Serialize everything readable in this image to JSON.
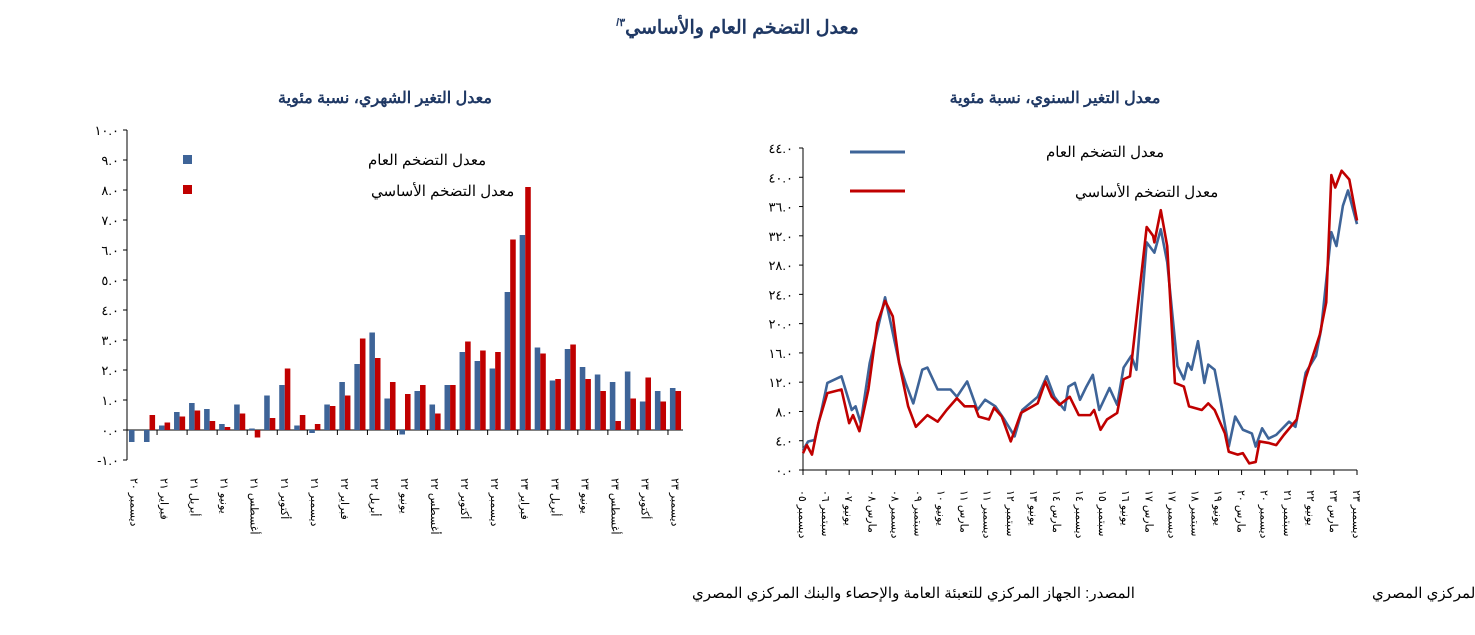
{
  "title": "معدل التضخم العام والأساسي",
  "title_note": "٣/",
  "colors": {
    "headline": "#3e6498",
    "core": "#c00000",
    "title": "#1f3864"
  },
  "chart_data": [
    {
      "type": "bar",
      "title": "معدل التغير الشهري، نسبة مئوية",
      "ylim": [
        -1,
        10
      ],
      "yticks": [
        "-١.٠",
        "٠.٠",
        "١.٠",
        "٢.٠",
        "٣.٠",
        "٤.٠",
        "٥.٠",
        "٦.٠",
        "٧.٠",
        "٨.٠",
        "٩.٠",
        "١٠.٠"
      ],
      "xtick_labels": [
        "ديسمبر ٢٠",
        "فبراير ٢١",
        "أبريل ٢١",
        "يونيو ٢١",
        "أغسطس ٢١",
        "أكتوبر ٢١",
        "ديسمبر ٢١",
        "فبراير ٢٢",
        "أبريل ٢٢",
        "يونيو ٢٢",
        "أغسطس ٢٢",
        "أكتوبر ٢٢",
        "ديسمبر ٢٢",
        "فبراير ٢٣",
        "أبريل ٢٣",
        "يونيو ٢٣",
        "أغسطس ٢٣",
        "أكتوبر ٢٣",
        "ديسمبر ٢٣"
      ],
      "categories_note": "monthly, Dec 2020 - Dec 2023",
      "series": [
        {
          "name": "معدل التضخم العام",
          "values": [
            -0.4,
            -0.4,
            0.15,
            0.6,
            0.9,
            0.7,
            0.2,
            0.85,
            0.05,
            1.15,
            1.5,
            0.15,
            -0.1,
            0.85,
            1.6,
            2.2,
            3.25,
            1.05,
            -0.15,
            1.3,
            0.85,
            1.5,
            2.6,
            2.3,
            2.05,
            4.6,
            6.5,
            2.75,
            1.65,
            2.7,
            2.1,
            1.85,
            1.6,
            1.95,
            0.95,
            1.3,
            1.4
          ]
        },
        {
          "name": "معدل التضخم الأساسي",
          "values": [
            0,
            0.5,
            0.25,
            0.45,
            0.65,
            0.3,
            0.1,
            0.55,
            -0.25,
            0.4,
            2.05,
            0.5,
            0.2,
            0.8,
            1.15,
            3.05,
            2.4,
            1.6,
            1.2,
            1.5,
            0.55,
            1.5,
            2.95,
            2.65,
            2.6,
            6.35,
            8.1,
            2.55,
            1.7,
            2.85,
            1.7,
            1.3,
            0.3,
            1.05,
            1.75,
            0.95,
            1.3
          ]
        }
      ],
      "legend": "top-left",
      "source": "المصدر: الجهاز المركزي للتعبئة العامة والإحصاء والبنك المركزي المصري"
    },
    {
      "type": "line",
      "title": "معدل التغير السنوي، نسبة مئوية",
      "ylim": [
        0,
        44
      ],
      "xlim_months": [
        0,
        216
      ],
      "yticks": [
        "٠.٠",
        "٤.٠",
        "٨.٠",
        "١٢.٠",
        "١٦.٠",
        "٢٠.٠",
        "٢٤.٠",
        "٢٨.٠",
        "٣٢.٠",
        "٣٦.٠",
        "٤٠.٠",
        "٤٤.٠"
      ],
      "xtick_labels": [
        "ديسمبر ٠٥",
        "سبتمبر ٠٦",
        "يونيو ٠٧",
        "مارس ٠٨",
        "ديسمبر ٠٨",
        "سبتمبر ٠٩",
        "يونيو ١٠",
        "مارس ١١",
        "ديسمبر ١١",
        "سبتمبر ١٢",
        "يونيو ١٣",
        "مارس ١٤",
        "ديسمبر ١٤",
        "سبتمبر ١٥",
        "يونيو ١٦",
        "مارس ١٧",
        "ديسمبر ١٧",
        "سبتمبر ١٨",
        "يونيو ١٩",
        "مارس ٢٠",
        "ديسمبر ٢٠",
        "سبتمبر ٢١",
        "يونيو ٢٢",
        "مارس ٢٣",
        "ديسمبر ٢٣"
      ],
      "x_unit": "months since Dec 2005",
      "series": [
        {
          "name": "معدل التضخم العام",
          "points": [
            [
              0,
              2.7
            ],
            [
              2,
              3.9
            ],
            [
              4.5,
              4.1
            ],
            [
              7,
              7.8
            ],
            [
              9.5,
              11.9
            ],
            [
              15,
              12.8
            ],
            [
              19,
              8.2
            ],
            [
              20.5,
              8.7
            ],
            [
              22.5,
              6.4
            ],
            [
              26,
              14.6
            ],
            [
              32,
              23.6
            ],
            [
              34,
              20.4
            ],
            [
              37.5,
              14.6
            ],
            [
              40,
              11.9
            ],
            [
              43,
              9.1
            ],
            [
              46.5,
              13.7
            ],
            [
              48.5,
              14
            ],
            [
              52.5,
              11
            ],
            [
              57.5,
              11
            ],
            [
              60,
              10
            ],
            [
              64,
              12.1
            ],
            [
              68,
              8.2
            ],
            [
              71,
              9.6
            ],
            [
              75,
              8.7
            ],
            [
              78.5,
              6.9
            ],
            [
              82.5,
              4.6
            ],
            [
              85.5,
              8.2
            ],
            [
              91.5,
              10
            ],
            [
              95,
              12.8
            ],
            [
              98,
              10
            ],
            [
              102,
              8.2
            ],
            [
              103.5,
              11.4
            ],
            [
              106,
              11.9
            ],
            [
              108,
              9.6
            ],
            [
              110.5,
              11.4
            ],
            [
              113,
              13
            ],
            [
              115.5,
              8.2
            ],
            [
              119.5,
              11.2
            ],
            [
              122.5,
              8.9
            ],
            [
              125,
              14
            ],
            [
              128,
              15.6
            ],
            [
              130,
              13.7
            ],
            [
              134,
              31.1
            ],
            [
              137,
              29.7
            ],
            [
              139.5,
              32.9
            ],
            [
              142,
              28.4
            ],
            [
              146,
              14.2
            ],
            [
              148.5,
              12.4
            ],
            [
              150,
              14.6
            ],
            [
              151.5,
              13.7
            ],
            [
              154,
              17.6
            ],
            [
              156.5,
              11.9
            ],
            [
              158,
              14.4
            ],
            [
              160.5,
              13.7
            ],
            [
              163,
              9.1
            ],
            [
              166,
              3.2
            ],
            [
              168.5,
              7.3
            ],
            [
              171.5,
              5.5
            ],
            [
              175,
              5
            ],
            [
              176.5,
              3.2
            ],
            [
              179,
              5.7
            ],
            [
              181.5,
              4.3
            ],
            [
              184.5,
              4.8
            ],
            [
              189.5,
              6.6
            ],
            [
              192,
              5.9
            ],
            [
              196,
              13.3
            ],
            [
              200,
              15.6
            ],
            [
              202,
              19.2
            ],
            [
              206,
              32.5
            ],
            [
              208,
              30.6
            ],
            [
              210.5,
              36.1
            ],
            [
              212.5,
              38.2
            ],
            [
              216,
              33.6
            ]
          ]
        },
        {
          "name": "معدل التضخم الأساسي",
          "points": [
            [
              0,
              2.3
            ],
            [
              1.5,
              3.4
            ],
            [
              3.5,
              2.1
            ],
            [
              6,
              6.4
            ],
            [
              9.5,
              10.5
            ],
            [
              15,
              11
            ],
            [
              18,
              6.4
            ],
            [
              19.5,
              7.5
            ],
            [
              22,
              5.3
            ],
            [
              25.5,
              11
            ],
            [
              29,
              20.1
            ],
            [
              32,
              23.1
            ],
            [
              35,
              21
            ],
            [
              37.5,
              14.6
            ],
            [
              41,
              8.7
            ],
            [
              44,
              5.9
            ],
            [
              48.5,
              7.5
            ],
            [
              52.5,
              6.6
            ],
            [
              56,
              8.2
            ],
            [
              60,
              9.8
            ],
            [
              63,
              8.7
            ],
            [
              67,
              8.7
            ],
            [
              68.5,
              7.3
            ],
            [
              72.5,
              6.9
            ],
            [
              74.5,
              8.5
            ],
            [
              77.5,
              7.3
            ],
            [
              81,
              3.9
            ],
            [
              85,
              7.8
            ],
            [
              91.5,
              9.1
            ],
            [
              94.5,
              12.1
            ],
            [
              97,
              10
            ],
            [
              100,
              8.9
            ],
            [
              104,
              10
            ],
            [
              107.5,
              7.5
            ],
            [
              112,
              7.5
            ],
            [
              113.5,
              8.2
            ],
            [
              116,
              5.5
            ],
            [
              118.5,
              6.9
            ],
            [
              122.5,
              7.8
            ],
            [
              125,
              12.4
            ],
            [
              127.5,
              12.8
            ],
            [
              131,
              23.8
            ],
            [
              134,
              33.2
            ],
            [
              136.5,
              32
            ],
            [
              137,
              31.1
            ],
            [
              139.5,
              35.5
            ],
            [
              142,
              30.6
            ],
            [
              145,
              11.9
            ],
            [
              148.5,
              11.4
            ],
            [
              150.5,
              8.7
            ],
            [
              155.5,
              8.2
            ],
            [
              158,
              9.1
            ],
            [
              160.5,
              8.2
            ],
            [
              164.5,
              5
            ],
            [
              166,
              2.5
            ],
            [
              169.5,
              2.1
            ],
            [
              171.5,
              2.3
            ],
            [
              174,
              0.9
            ],
            [
              176.5,
              1.1
            ],
            [
              178,
              3.9
            ],
            [
              181.5,
              3.7
            ],
            [
              184.5,
              3.4
            ],
            [
              187.5,
              4.8
            ],
            [
              192.5,
              6.9
            ],
            [
              196,
              12.6
            ],
            [
              201.5,
              18.5
            ],
            [
              204,
              22.9
            ],
            [
              206,
              40.3
            ],
            [
              207.5,
              38.6
            ],
            [
              210,
              40.9
            ],
            [
              213,
              39.7
            ],
            [
              216,
              34.1
            ]
          ]
        }
      ],
      "legend": "top-left",
      "source": "المصدر: الجهاز المركزي للتعبئة العامة والإحصاء والبنك المركزي المصري"
    }
  ]
}
